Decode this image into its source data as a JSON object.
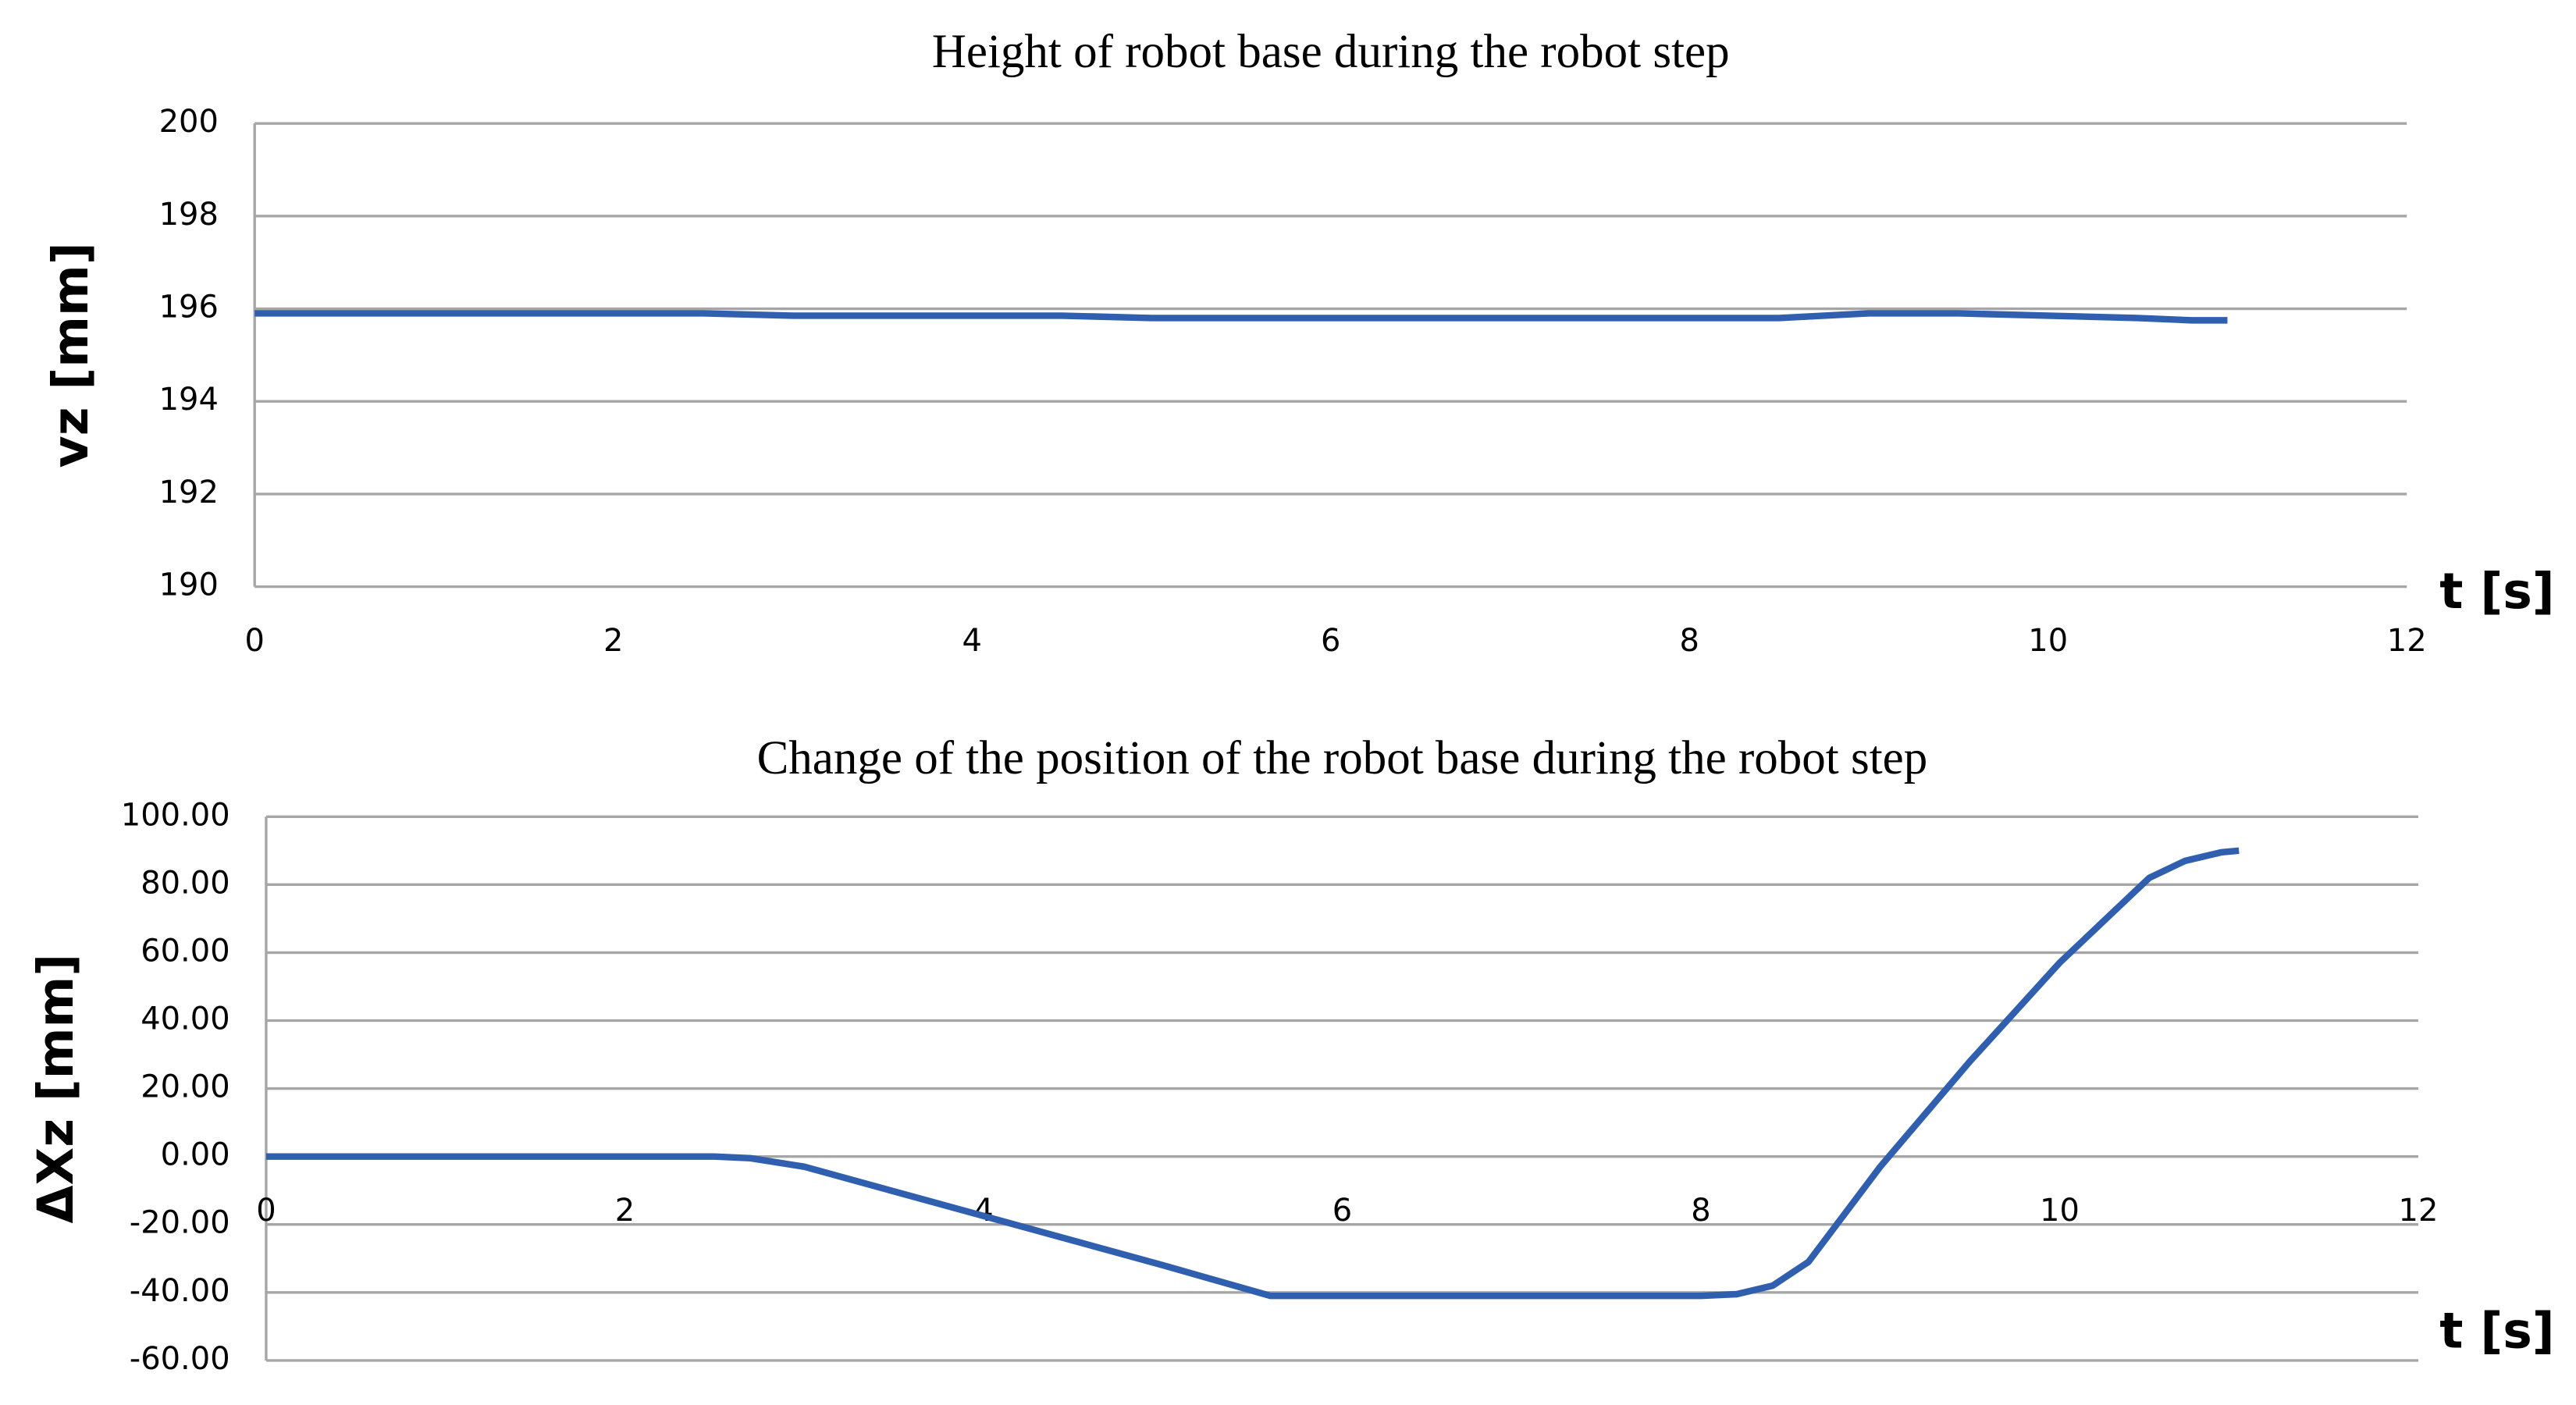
{
  "chart_data": [
    {
      "type": "line",
      "title": "Height of robot base during the robot step",
      "y_label": "vz [mm]",
      "x_label": "t [s]",
      "xlim": [
        0,
        12
      ],
      "xticks": [
        0,
        2,
        4,
        6,
        8,
        10,
        12
      ],
      "ylim": [
        190,
        200
      ],
      "yticks": [
        190,
        192,
        194,
        196,
        198,
        200
      ],
      "grid": true,
      "series": [
        {
          "color": "#2f5fae",
          "x": [
            0,
            0.5,
            1,
            1.5,
            2,
            2.5,
            3,
            3.5,
            4,
            4.5,
            5,
            5.5,
            6,
            6.5,
            7,
            7.5,
            8,
            8.5,
            9,
            9.5,
            10,
            10.5,
            10.8,
            11
          ],
          "values": [
            195.9,
            195.9,
            195.9,
            195.9,
            195.9,
            195.9,
            195.85,
            195.85,
            195.85,
            195.85,
            195.8,
            195.8,
            195.8,
            195.8,
            195.8,
            195.8,
            195.8,
            195.8,
            195.9,
            195.9,
            195.85,
            195.8,
            195.75,
            195.75
          ]
        }
      ]
    },
    {
      "type": "line",
      "title": "Change of the position of the robot base during the robot step",
      "y_label": "ΔXz [mm]",
      "x_label": "t [s]",
      "xlim": [
        0,
        12
      ],
      "xticks": [
        0,
        2,
        4,
        6,
        8,
        10,
        12
      ],
      "ylim": [
        -60,
        100
      ],
      "yticks": [
        {
          "value": -60,
          "label": "-60.00"
        },
        {
          "value": -40,
          "label": "-40.00"
        },
        {
          "value": -20,
          "label": "-20.00"
        },
        {
          "value": 0,
          "label": "0.00"
        },
        {
          "value": 20,
          "label": "20.00"
        },
        {
          "value": 40,
          "label": "40.00"
        },
        {
          "value": 60,
          "label": "60.00"
        },
        {
          "value": 80,
          "label": "80.00"
        },
        {
          "value": 100,
          "label": "100.00"
        }
      ],
      "grid": true,
      "series": [
        {
          "color": "#2f5fae",
          "x": [
            0,
            1,
            2,
            2.5,
            2.7,
            3,
            4,
            5,
            5.6,
            6,
            7,
            8,
            8.2,
            8.4,
            8.6,
            9,
            9.5,
            10,
            10.5,
            10.7,
            10.9,
            11
          ],
          "values": [
            0,
            0,
            0,
            0,
            -0.5,
            -3,
            -17.5,
            -32,
            -41,
            -41,
            -41,
            -41,
            -40.5,
            -38,
            -31,
            -3,
            28,
            57,
            82,
            87,
            89.5,
            90
          ]
        }
      ]
    }
  ]
}
